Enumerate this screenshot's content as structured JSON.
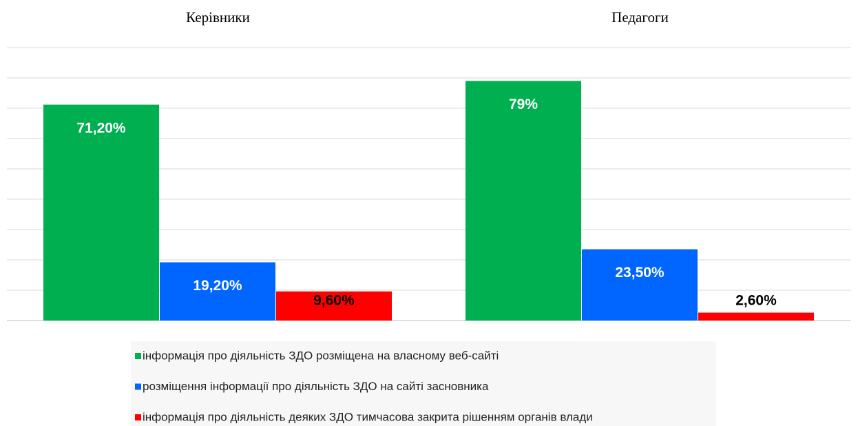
{
  "chart_data": {
    "type": "bar",
    "categories": [
      "Керівники",
      "Педагоги"
    ],
    "series": [
      {
        "name": "інформація про діяльність ЗДО розміщена на власному веб-сайті",
        "color": "#00b050",
        "values": [
          71.2,
          79
        ],
        "value_labels": [
          "71,20%",
          "79%"
        ]
      },
      {
        "name": "розміщення інформації про діяльність ЗДО на сайті засновника",
        "color": "#0066ff",
        "values": [
          19.2,
          23.5
        ],
        "value_labels": [
          "19,20%",
          "23,50%"
        ]
      },
      {
        "name": "інформація про діяльність деяких ЗДО тимчасова закрита  рішенням органів влади",
        "color": "#ff0000",
        "values": [
          9.6,
          2.6
        ],
        "value_labels": [
          "9,60%",
          "2,60%"
        ]
      }
    ],
    "ylim": [
      0,
      90
    ],
    "yticks": [
      0,
      10,
      20,
      30,
      40,
      50,
      60,
      70,
      80,
      90
    ],
    "grid": true
  }
}
